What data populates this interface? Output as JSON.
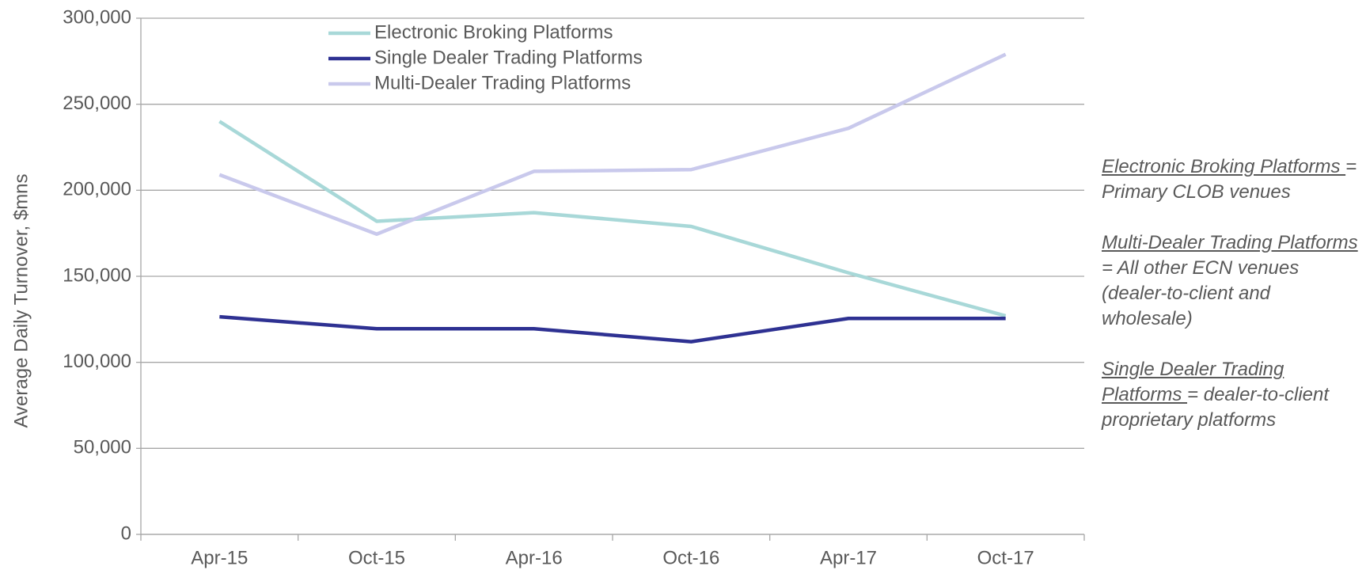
{
  "chart_data": {
    "type": "line",
    "y_axis_label": "Average Daily Turnover, $mns",
    "categories": [
      "Apr-15",
      "Oct-15",
      "Apr-16",
      "Oct-16",
      "Apr-17",
      "Oct-17"
    ],
    "series": [
      {
        "name": "Electronic Broking Platforms",
        "color": "#a8d8d8",
        "values": [
          240000,
          182000,
          187000,
          179000,
          152000,
          127000
        ]
      },
      {
        "name": "Single Dealer Trading Platforms",
        "color": "#2e3192",
        "values": [
          126500,
          119500,
          119500,
          112000,
          125500,
          125500
        ]
      },
      {
        "name": "Multi-Dealer Trading Platforms",
        "color": "#c9c9ec",
        "values": [
          209000,
          174500,
          211000,
          212000,
          236000,
          279000
        ]
      }
    ],
    "ylim": [
      0,
      300000
    ],
    "yticks": [
      {
        "value": 0,
        "label": "0"
      },
      {
        "value": 50000,
        "label": "50,000"
      },
      {
        "value": 100000,
        "label": "100,000"
      },
      {
        "value": 150000,
        "label": "150,000"
      },
      {
        "value": 200000,
        "label": "200,000"
      },
      {
        "value": 250000,
        "label": "250,000"
      },
      {
        "value": 300000,
        "label": "300,000"
      }
    ],
    "grid": true,
    "legend_position": "upper left",
    "notes": [
      {
        "term": "Electronic Broking Platforms ",
        "definition": "= Primary CLOB venues"
      },
      {
        "term": "Multi-Dealer Trading Platforms ",
        "definition": "= All other ECN venues (dealer-to-client and wholesale)"
      },
      {
        "term": "Single Dealer Trading Platforms ",
        "definition": "= dealer-to-client proprietary platforms"
      }
    ]
  }
}
